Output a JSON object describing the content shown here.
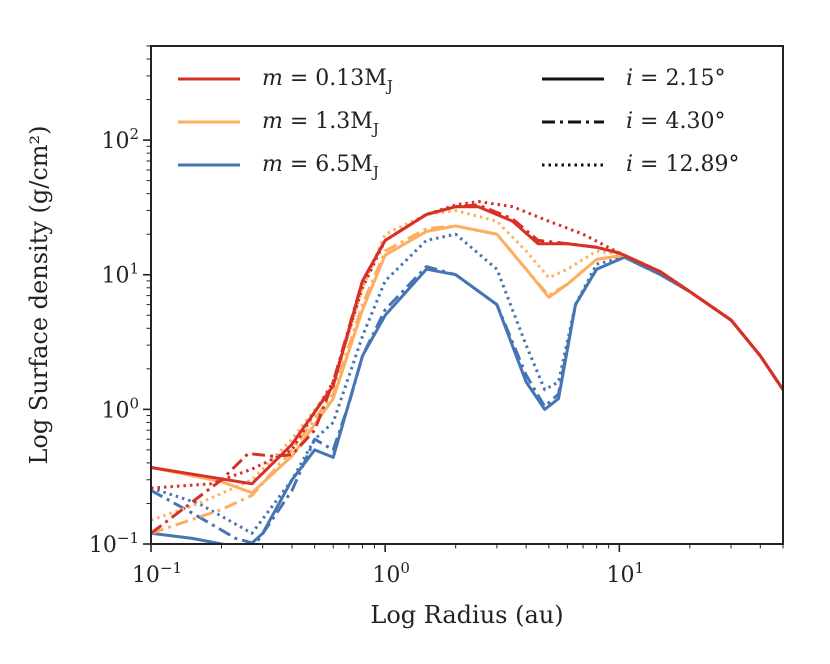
{
  "chart_data": {
    "type": "line",
    "title": "",
    "xlabel": "Log Radius (au)",
    "ylabel": "Log Surface density (g/cm²)",
    "xscale": "log",
    "yscale": "log",
    "xlim": [
      0.1,
      50
    ],
    "ylim": [
      0.1,
      500
    ],
    "x_ticks": [
      {
        "value": 0.1,
        "base": "10",
        "exp": "−1"
      },
      {
        "value": 1,
        "base": "10",
        "exp": "0"
      },
      {
        "value": 10,
        "base": "10",
        "exp": "1"
      }
    ],
    "y_ticks": [
      {
        "value": 0.1,
        "base": "10",
        "exp": "−1"
      },
      {
        "value": 1,
        "base": "10",
        "exp": "0"
      },
      {
        "value": 10,
        "base": "10",
        "exp": "1"
      },
      {
        "value": 100,
        "base": "10",
        "exp": "2"
      }
    ],
    "legend_mass": [
      {
        "label": "m = 0.13M",
        "sub": "J",
        "color": "#d73027"
      },
      {
        "label": "m = 1.3M",
        "sub": "J",
        "color": "#fdae61"
      },
      {
        "label": "m = 6.5M",
        "sub": "J",
        "color": "#4575b4"
      }
    ],
    "legend_incl": [
      {
        "label": "i = 2.15°",
        "style": "solid"
      },
      {
        "label": "i = 4.30°",
        "style": "dashdot"
      },
      {
        "label": "i = 12.89°",
        "style": "dotted"
      }
    ],
    "series": [
      {
        "name": "m = 6.5MJ, i = 12.89°",
        "mass": 2,
        "incl": 2,
        "points": [
          [
            0.1,
            0.26
          ],
          [
            0.16,
            0.2
          ],
          [
            0.27,
            0.12
          ],
          [
            0.4,
            0.3
          ],
          [
            0.5,
            0.6
          ],
          [
            0.6,
            0.8
          ],
          [
            0.8,
            3.5
          ],
          [
            1.0,
            9
          ],
          [
            1.5,
            18
          ],
          [
            2.0,
            20
          ],
          [
            3.0,
            11
          ],
          [
            4.0,
            3
          ],
          [
            4.8,
            1.4
          ],
          [
            5.5,
            1.6
          ],
          [
            6.5,
            6
          ],
          [
            8.0,
            12
          ],
          [
            10.5,
            13.5
          ],
          [
            15,
            10
          ],
          [
            20,
            7.5
          ],
          [
            30,
            4.6
          ],
          [
            40,
            2.5
          ],
          [
            50,
            1.4
          ]
        ]
      },
      {
        "name": "m = 6.5MJ, i = 4.30°",
        "mass": 2,
        "incl": 1,
        "points": [
          [
            0.1,
            0.25
          ],
          [
            0.15,
            0.17
          ],
          [
            0.23,
            0.11
          ],
          [
            0.28,
            0.1
          ],
          [
            0.4,
            0.25
          ],
          [
            0.5,
            0.6
          ],
          [
            0.6,
            0.5
          ],
          [
            0.7,
            1.1
          ],
          [
            0.8,
            2.5
          ],
          [
            1.0,
            5.5
          ],
          [
            1.5,
            11.5
          ],
          [
            2.0,
            10
          ],
          [
            3.0,
            6
          ],
          [
            4.0,
            1.8
          ],
          [
            4.8,
            1.05
          ],
          [
            5.5,
            1.3
          ],
          [
            6.5,
            6
          ],
          [
            8.0,
            11
          ],
          [
            10.5,
            13.5
          ],
          [
            15,
            10
          ],
          [
            20,
            7.5
          ],
          [
            30,
            4.6
          ],
          [
            40,
            2.5
          ],
          [
            50,
            1.4
          ]
        ]
      },
      {
        "name": "m = 6.5MJ, i = 2.15°",
        "mass": 2,
        "incl": 0,
        "points": [
          [
            0.1,
            0.12
          ],
          [
            0.15,
            0.11
          ],
          [
            0.2,
            0.1
          ],
          [
            0.25,
            0.09
          ],
          [
            0.3,
            0.12
          ],
          [
            0.4,
            0.3
          ],
          [
            0.5,
            0.5
          ],
          [
            0.6,
            0.44
          ],
          [
            0.8,
            2.5
          ],
          [
            1.0,
            5
          ],
          [
            1.5,
            11
          ],
          [
            2.0,
            10
          ],
          [
            3.0,
            6
          ],
          [
            4.0,
            1.6
          ],
          [
            4.8,
            1.0
          ],
          [
            5.5,
            1.2
          ],
          [
            6.5,
            6
          ],
          [
            8.0,
            11
          ],
          [
            10.5,
            13.5
          ],
          [
            15,
            10
          ],
          [
            20,
            7.5
          ],
          [
            30,
            4.6
          ],
          [
            40,
            2.5
          ],
          [
            50,
            1.4
          ]
        ]
      },
      {
        "name": "m = 1.3MJ, i = 12.89°",
        "mass": 1,
        "incl": 2,
        "points": [
          [
            0.1,
            0.15
          ],
          [
            0.16,
            0.2
          ],
          [
            0.27,
            0.3
          ],
          [
            0.4,
            0.6
          ],
          [
            0.6,
            1.5
          ],
          [
            0.8,
            8
          ],
          [
            1.0,
            20
          ],
          [
            1.5,
            28
          ],
          [
            2.0,
            30
          ],
          [
            3.0,
            25
          ],
          [
            4.0,
            15
          ],
          [
            5.0,
            9.5
          ],
          [
            6.0,
            11
          ],
          [
            8.0,
            15
          ],
          [
            10.5,
            14
          ],
          [
            15,
            10.5
          ],
          [
            20,
            7.5
          ],
          [
            30,
            4.6
          ],
          [
            40,
            2.5
          ],
          [
            50,
            1.4
          ]
        ]
      },
      {
        "name": "m = 1.3MJ, i = 4.30°",
        "mass": 1,
        "incl": 1,
        "points": [
          [
            0.1,
            0.12
          ],
          [
            0.2,
            0.18
          ],
          [
            0.27,
            0.23
          ],
          [
            0.4,
            0.5
          ],
          [
            0.6,
            1.3
          ],
          [
            0.8,
            6
          ],
          [
            1.0,
            15
          ],
          [
            1.5,
            22
          ],
          [
            2.0,
            23
          ],
          [
            3.0,
            20
          ],
          [
            4.0,
            11
          ],
          [
            5.0,
            7
          ],
          [
            6.0,
            8.5
          ],
          [
            8.0,
            13
          ],
          [
            10.5,
            14
          ],
          [
            15,
            10.5
          ],
          [
            20,
            7.5
          ],
          [
            30,
            4.6
          ],
          [
            40,
            2.5
          ],
          [
            50,
            1.4
          ]
        ]
      },
      {
        "name": "m = 1.3MJ, i = 2.15°",
        "mass": 1,
        "incl": 0,
        "points": [
          [
            0.1,
            0.37
          ],
          [
            0.2,
            0.29
          ],
          [
            0.27,
            0.24
          ],
          [
            0.4,
            0.45
          ],
          [
            0.6,
            1.2
          ],
          [
            0.8,
            5.5
          ],
          [
            1.0,
            14
          ],
          [
            1.5,
            21
          ],
          [
            2.0,
            23
          ],
          [
            3.0,
            20
          ],
          [
            4.0,
            11
          ],
          [
            5.0,
            6.8
          ],
          [
            6.0,
            8.5
          ],
          [
            8.0,
            13
          ],
          [
            10.5,
            14
          ],
          [
            15,
            10.5
          ],
          [
            20,
            7.5
          ],
          [
            30,
            4.6
          ],
          [
            40,
            2.5
          ],
          [
            50,
            1.4
          ]
        ]
      },
      {
        "name": "m = 0.13MJ, i = 12.89°",
        "mass": 0,
        "incl": 2,
        "points": [
          [
            0.1,
            0.26
          ],
          [
            0.18,
            0.28
          ],
          [
            0.27,
            0.36
          ],
          [
            0.4,
            0.5
          ],
          [
            0.6,
            1.6
          ],
          [
            0.8,
            8
          ],
          [
            1.0,
            18
          ],
          [
            1.5,
            28
          ],
          [
            2.0,
            33
          ],
          [
            2.5,
            35
          ],
          [
            3.5,
            32
          ],
          [
            5.0,
            25
          ],
          [
            7.0,
            20
          ],
          [
            10.0,
            14.5
          ],
          [
            15,
            10.5
          ],
          [
            20,
            7.5
          ],
          [
            30,
            4.6
          ],
          [
            40,
            2.5
          ],
          [
            50,
            1.4
          ]
        ]
      },
      {
        "name": "m = 0.13MJ, i = 4.30°",
        "mass": 0,
        "incl": 1,
        "points": [
          [
            0.1,
            0.12
          ],
          [
            0.2,
            0.3
          ],
          [
            0.26,
            0.47
          ],
          [
            0.33,
            0.45
          ],
          [
            0.4,
            0.46
          ],
          [
            0.5,
            0.7
          ],
          [
            0.6,
            1.6
          ],
          [
            0.8,
            9
          ],
          [
            1.0,
            18
          ],
          [
            1.5,
            28
          ],
          [
            2.0,
            32
          ],
          [
            2.5,
            33
          ],
          [
            3.5,
            26
          ],
          [
            4.5,
            18
          ],
          [
            6.0,
            17
          ],
          [
            8.0,
            16
          ],
          [
            10.0,
            14.5
          ],
          [
            15,
            10.5
          ],
          [
            20,
            7.5
          ],
          [
            30,
            4.6
          ],
          [
            40,
            2.5
          ],
          [
            50,
            1.4
          ]
        ]
      },
      {
        "name": "m = 0.13MJ, i = 2.15°",
        "mass": 0,
        "incl": 0,
        "points": [
          [
            0.1,
            0.37
          ],
          [
            0.27,
            0.28
          ],
          [
            0.4,
            0.55
          ],
          [
            0.6,
            1.5
          ],
          [
            0.8,
            9
          ],
          [
            1.0,
            18
          ],
          [
            1.5,
            28
          ],
          [
            2.0,
            32
          ],
          [
            2.5,
            32
          ],
          [
            3.5,
            25
          ],
          [
            4.5,
            17
          ],
          [
            6.0,
            17
          ],
          [
            8.0,
            16
          ],
          [
            10.0,
            14.5
          ],
          [
            15,
            10.5
          ],
          [
            20,
            7.5
          ],
          [
            30,
            4.6
          ],
          [
            40,
            2.5
          ],
          [
            50,
            1.4
          ]
        ]
      }
    ]
  }
}
